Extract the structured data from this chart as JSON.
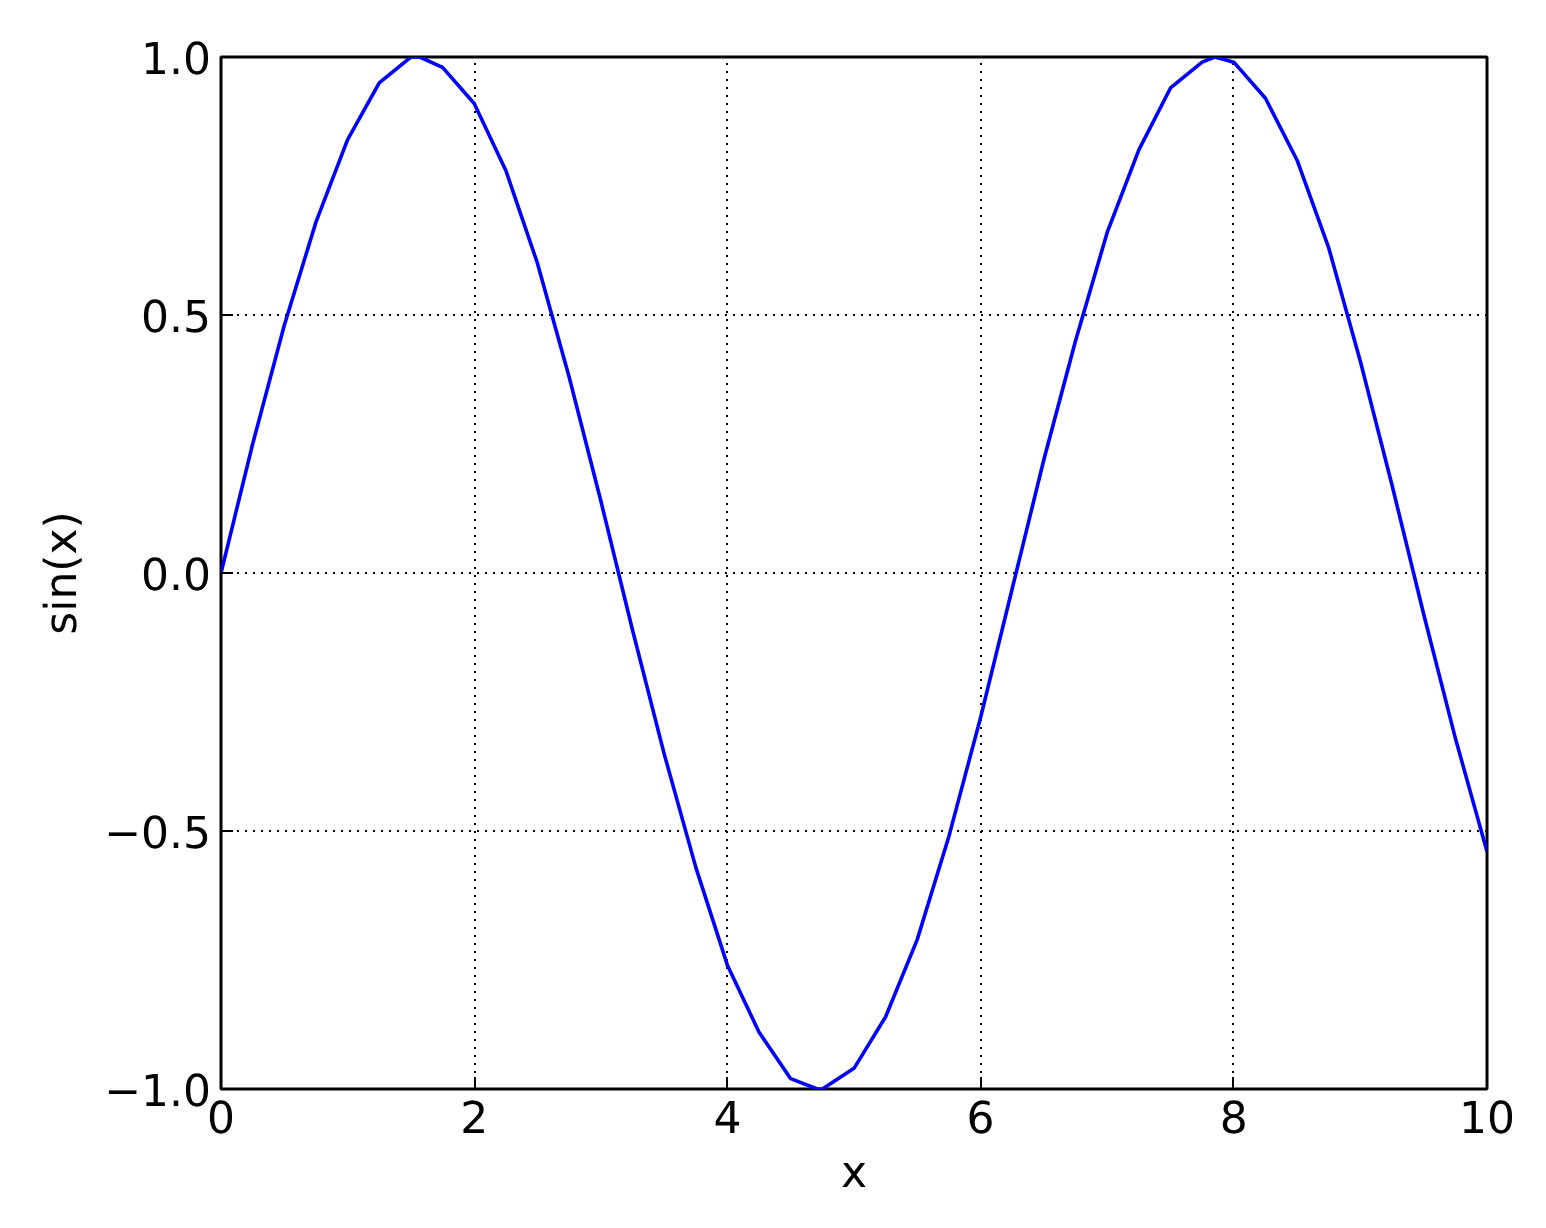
{
  "chart_data": {
    "type": "line",
    "xlabel": "x",
    "ylabel": "sin(x)",
    "x": [
      0,
      0.25,
      0.5,
      0.75,
      1,
      1.25,
      1.5,
      1.57,
      1.75,
      2,
      2.25,
      2.5,
      2.75,
      3,
      3.25,
      3.5,
      3.75,
      4,
      4.25,
      4.5,
      4.71,
      4.75,
      5,
      5.25,
      5.5,
      5.75,
      6,
      6.25,
      6.5,
      6.75,
      7,
      7.25,
      7.5,
      7.75,
      7.85,
      8,
      8.25,
      8.5,
      8.75,
      9,
      9.25,
      9.5,
      9.75,
      10
    ],
    "series": [
      {
        "color": "#0000ff",
        "values": [
          0,
          0.25,
          0.48,
          0.68,
          0.84,
          0.95,
          1.0,
          1.0,
          0.98,
          0.91,
          0.78,
          0.6,
          0.38,
          0.14,
          -0.11,
          -0.35,
          -0.57,
          -0.76,
          -0.89,
          -0.98,
          -1.0,
          -1.0,
          -0.96,
          -0.86,
          -0.71,
          -0.51,
          -0.28,
          -0.03,
          0.22,
          0.45,
          0.66,
          0.82,
          0.94,
          0.99,
          1.0,
          0.99,
          0.92,
          0.8,
          0.63,
          0.41,
          0.17,
          -0.08,
          -0.32,
          -0.54
        ]
      }
    ],
    "xlim": [
      0,
      10
    ],
    "ylim": [
      -1,
      1
    ],
    "xticks": [
      0,
      2,
      4,
      6,
      8,
      10
    ],
    "yticks": [
      {
        "value": -1,
        "label": "−1.0"
      },
      {
        "value": -0.5,
        "label": "−0.5"
      },
      {
        "value": 0,
        "label": "0.0"
      },
      {
        "value": 0.5,
        "label": "0.5"
      },
      {
        "value": 1,
        "label": "1.0"
      }
    ],
    "grid": true,
    "line_style": "solid",
    "marker": "none"
  }
}
